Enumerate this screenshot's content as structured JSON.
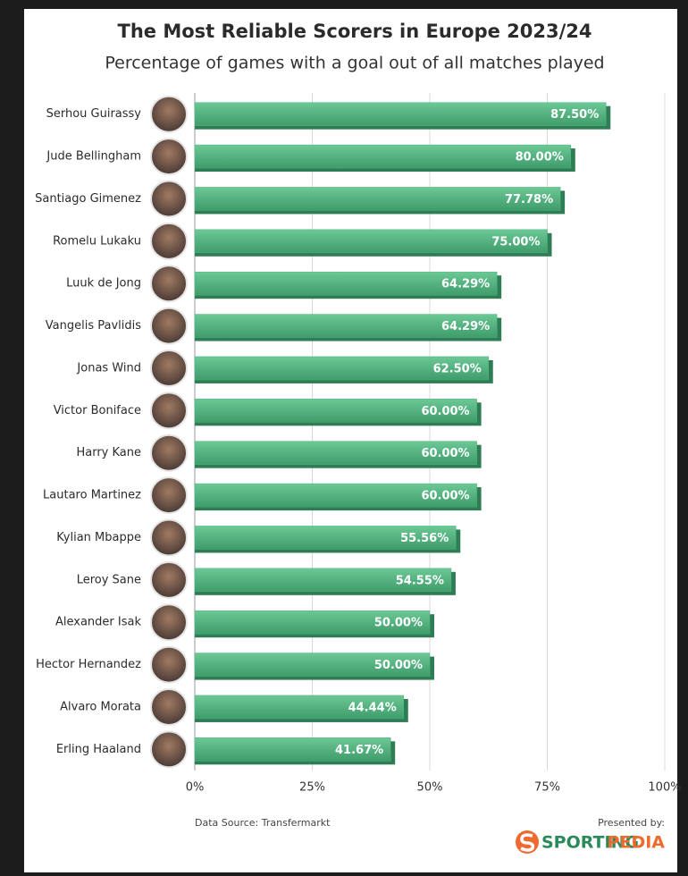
{
  "chart_data": {
    "type": "hbar",
    "title": "The Most Reliable Scorers in Europe 2023/24",
    "subtitle": "Percentage of games with a goal out of all matches played",
    "categories": [
      "Serhou Guirassy",
      "Jude Bellingham",
      "Santiago Gimenez",
      "Romelu Lukaku",
      "Luuk de Jong",
      "Vangelis Pavlidis",
      "Jonas Wind",
      "Victor Boniface",
      "Harry Kane",
      "Lautaro Martinez",
      "Kylian Mbappe",
      "Leroy Sane",
      "Alexander Isak",
      "Hector Hernandez",
      "Alvaro Morata",
      "Erling Haaland"
    ],
    "values": [
      87.5,
      80,
      77.78,
      75,
      64.29,
      64.29,
      62.5,
      60,
      60,
      60,
      55.56,
      54.55,
      50,
      50,
      44.44,
      41.67
    ],
    "value_labels": [
      "87.50%",
      "80.00%",
      "77.78%",
      "75.00%",
      "64.29%",
      "64.29%",
      "62.50%",
      "60.00%",
      "60.00%",
      "60.00%",
      "55.56%",
      "54.55%",
      "50.00%",
      "50.00%",
      "44.44%",
      "41.67%"
    ],
    "color": "#4fb380",
    "xlim": [
      0,
      100
    ],
    "xticks": [
      {
        "value": 0,
        "label": "0%"
      },
      {
        "value": 25,
        "label": "25%"
      },
      {
        "value": 50,
        "label": "50%"
      },
      {
        "value": 75,
        "label": "75%"
      },
      {
        "value": 100,
        "label": "100%"
      }
    ],
    "grid": true,
    "source": "Data Source: Transfermarkt",
    "presented_by": "Presented by:",
    "brand": [
      "SPORTING",
      "PEDIA"
    ]
  }
}
